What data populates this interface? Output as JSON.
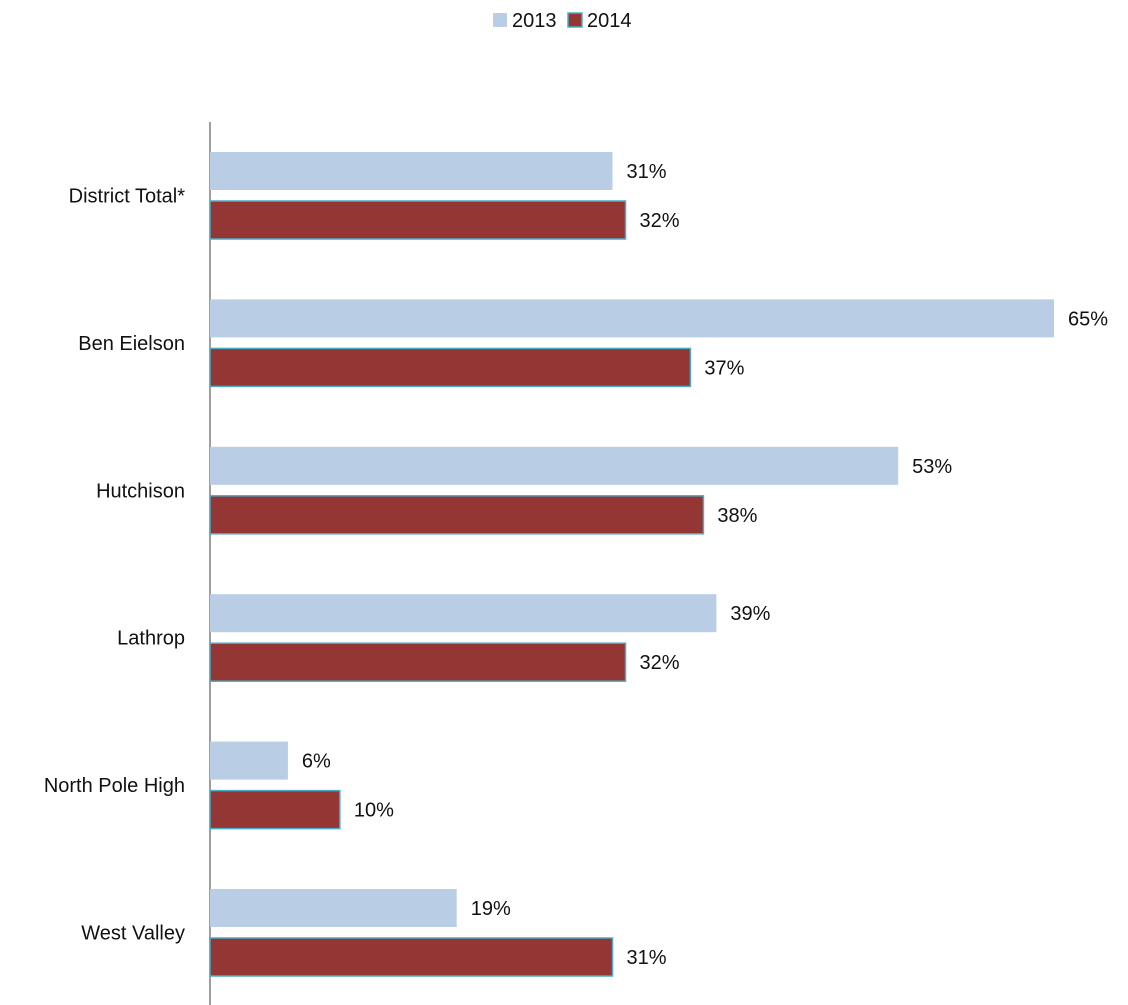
{
  "chart_data": {
    "type": "bar",
    "orientation": "horizontal",
    "categories": [
      "District Total*",
      "Ben Eielson",
      "Hutchison",
      "Lathrop",
      "North Pole High",
      "West Valley"
    ],
    "series": [
      {
        "name": "2013",
        "values": [
          31,
          65,
          53,
          39,
          6,
          19
        ],
        "labels": [
          "31%",
          "65%",
          "53%",
          "39%",
          "6%",
          "19%"
        ],
        "color": "#b9cde5"
      },
      {
        "name": "2014",
        "values": [
          32,
          37,
          38,
          32,
          10,
          31
        ],
        "labels": [
          "32%",
          "37%",
          "38%",
          "32%",
          "10%",
          "31%"
        ],
        "color": "#943634",
        "edge_color": "#4bacc6"
      }
    ],
    "value_suffix": "%",
    "xlim": [
      0,
      65
    ],
    "grid": false,
    "legend_position": "top-center",
    "title": "",
    "xlabel": "",
    "ylabel": ""
  }
}
